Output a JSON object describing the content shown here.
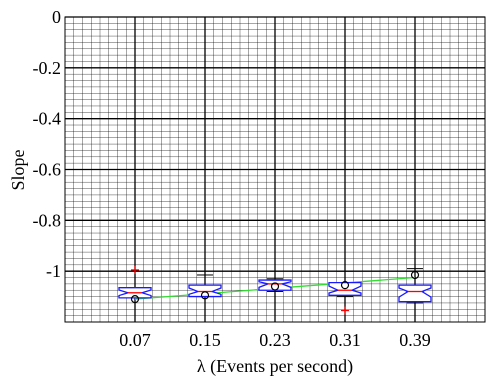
{
  "chart_data": {
    "type": "box",
    "xlabel": "λ (Events per second)",
    "ylabel": "Slope",
    "x_ticks": [
      "0.07",
      "0.15",
      "0.23",
      "0.31",
      "0.39"
    ],
    "x_values": [
      0.07,
      0.15,
      0.23,
      0.31,
      0.39
    ],
    "xlim": [
      -0.01,
      0.47
    ],
    "ylim": [
      -1.2,
      0
    ],
    "y_ticks": [
      0,
      -0.2,
      -0.4,
      -0.6,
      -0.8,
      -1
    ],
    "y_tick_labels": [
      "0",
      "-0.2",
      "-0.4",
      "-0.6",
      "-0.8",
      "-1"
    ],
    "grid": "major and minor",
    "boxes": [
      {
        "x": 0.07,
        "q1": -1.105,
        "median": -1.085,
        "q3": -1.065,
        "whisker_low": -1.105,
        "whisker_high": -1.065,
        "mean": -1.11,
        "outliers": [
          -0.995
        ]
      },
      {
        "x": 0.15,
        "q1": -1.1,
        "median": -1.08,
        "q3": -1.055,
        "whisker_low": -1.1,
        "whisker_high": -1.015,
        "mean": -1.095,
        "outliers": []
      },
      {
        "x": 0.23,
        "q1": -1.075,
        "median": -1.05,
        "q3": -1.035,
        "whisker_low": -1.08,
        "whisker_high": -1.03,
        "mean": -1.06,
        "outliers": []
      },
      {
        "x": 0.31,
        "q1": -1.095,
        "median": -1.075,
        "q3": -1.045,
        "whisker_low": -1.1,
        "whisker_high": -1.0,
        "mean": -1.055,
        "outliers": [
          -1.155
        ]
      },
      {
        "x": 0.39,
        "q1": -1.12,
        "median": -1.08,
        "q3": -1.055,
        "whisker_low": -1.125,
        "whisker_high": -0.99,
        "mean": -1.015,
        "outliers": []
      }
    ],
    "trend_line": {
      "x": [
        0.07,
        0.39
      ],
      "y": [
        -1.11,
        -1.025
      ]
    },
    "colors": {
      "box": "#1a1aff",
      "median": "#ff0000",
      "whisker": "#000000",
      "outlier": "#ff0000",
      "mean": "#000000",
      "trend": "#33dd33",
      "grid": "#000000"
    }
  }
}
